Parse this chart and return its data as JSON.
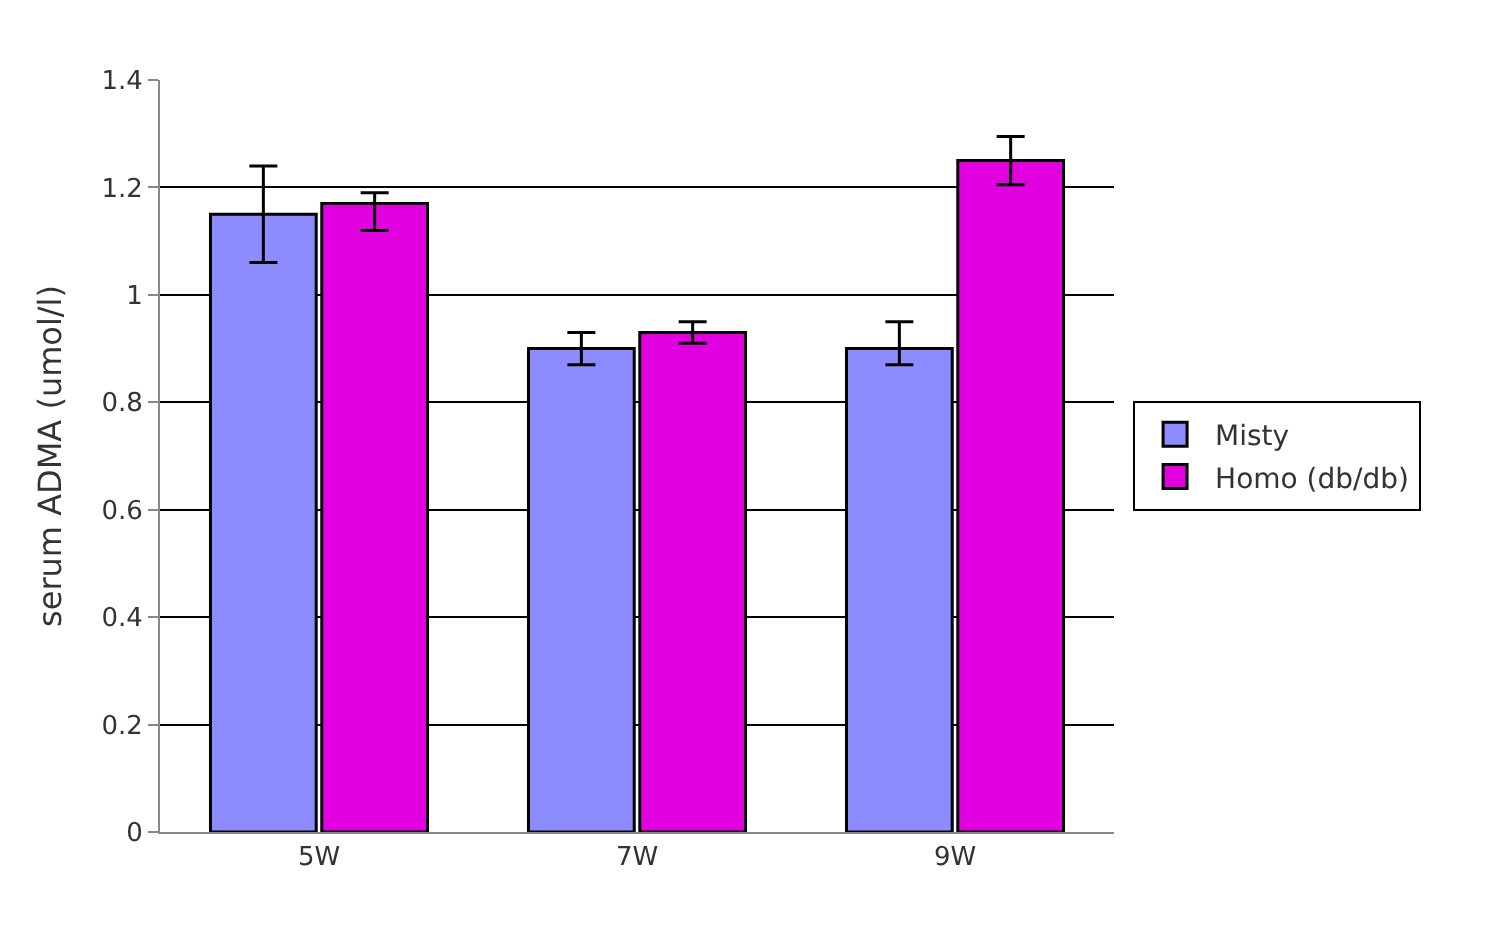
{
  "chart_data": {
    "type": "bar",
    "ylabel": "serum ADMA (umol/l)",
    "categories": [
      "5W",
      "7W",
      "9W"
    ],
    "series": [
      {
        "name": "Misty",
        "color": "#8c8cff",
        "values": [
          1.15,
          0.9,
          0.9
        ],
        "errors": [
          0.09,
          0.03,
          [
            0.87,
            0.95
          ]
        ]
      },
      {
        "name": "Homo (db/db)",
        "color": "#e000e0",
        "values": [
          1.17,
          0.93,
          1.25
        ],
        "errors": [
          [
            1.12,
            1.19
          ],
          0.02,
          0.045
        ]
      }
    ],
    "ylim": [
      0,
      1.4
    ],
    "yticks": [
      0,
      0.2,
      0.4,
      0.6,
      0.8,
      1,
      1.2,
      1.4
    ],
    "grid": "y",
    "legend": "right"
  }
}
